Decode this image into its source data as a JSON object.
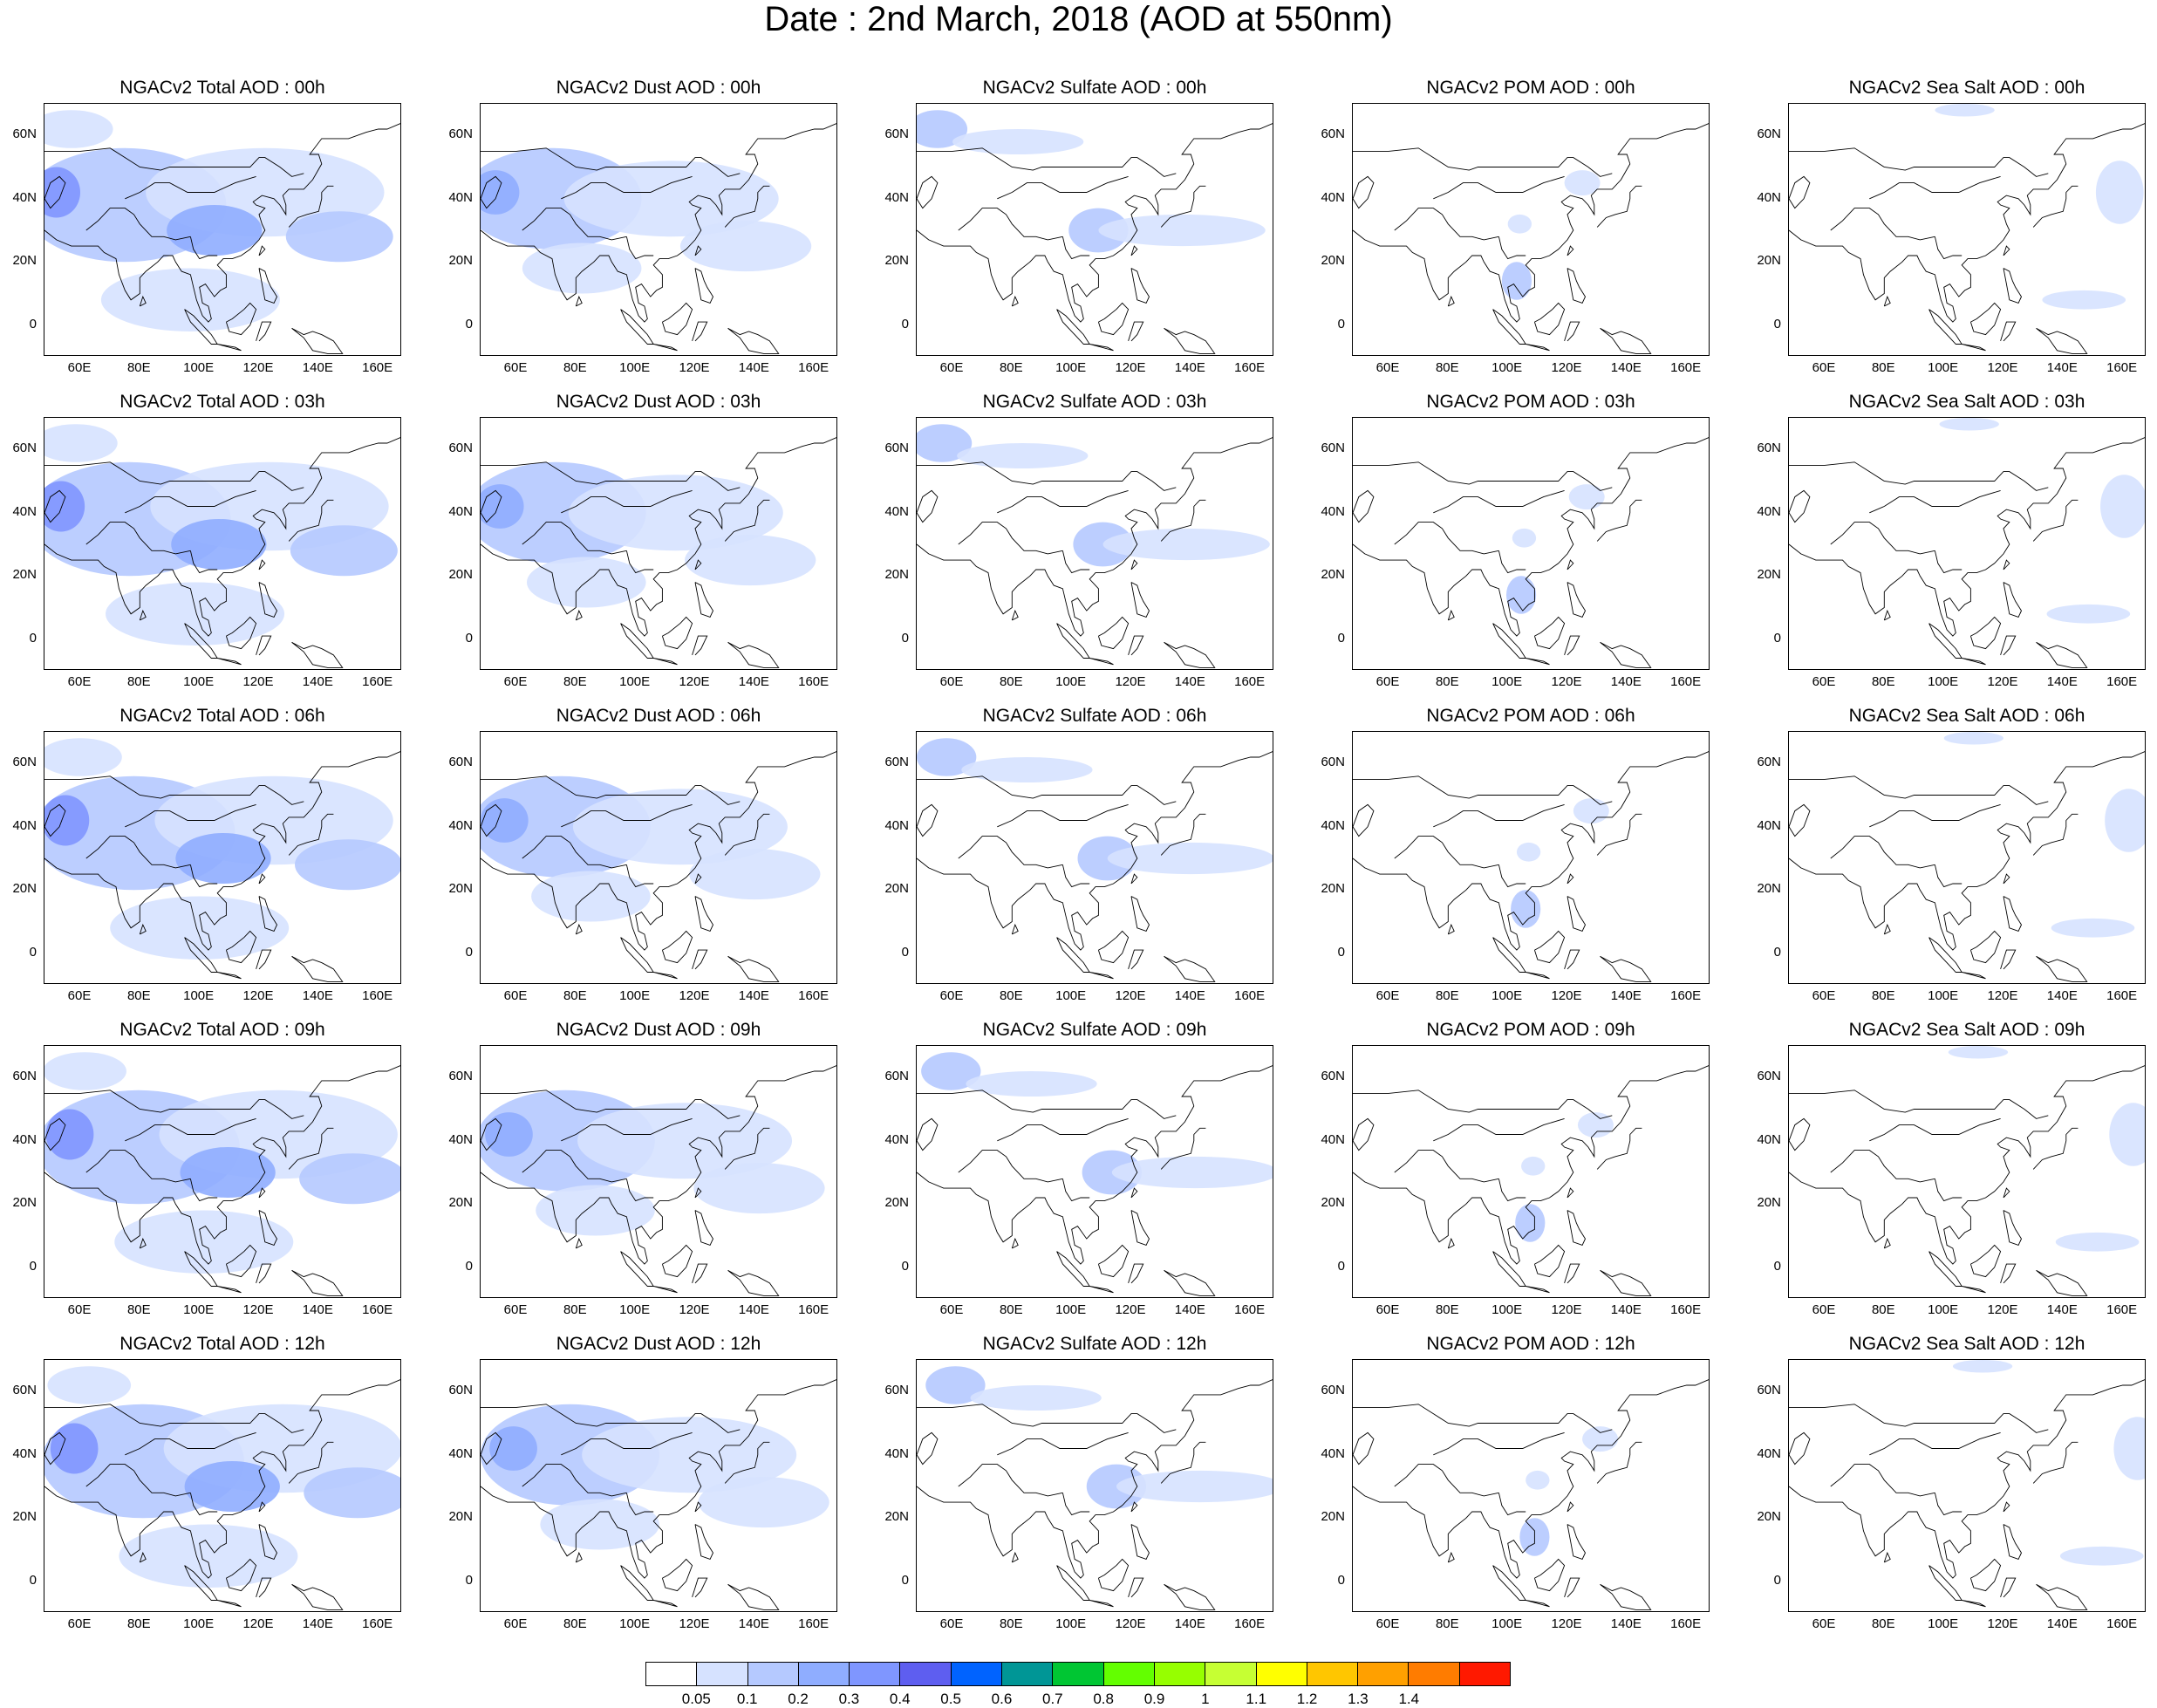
{
  "title": "Date : 2nd March, 2018 (AOD at 550nm)",
  "lat_labels": [
    "60N",
    "40N",
    "20N",
    "0"
  ],
  "lon_labels": [
    "60E",
    "80E",
    "100E",
    "120E",
    "140E",
    "160E"
  ],
  "map_extent": {
    "lon": [
      48,
      168
    ],
    "lat": [
      -10,
      70
    ]
  },
  "panel_titles": [
    [
      "NGACv2 Total AOD : 00h",
      "NGACv2 Dust AOD : 00h",
      "NGACv2 Sulfate AOD : 00h",
      "NGACv2 POM AOD : 00h",
      "NGACv2 Sea Salt AOD : 00h"
    ],
    [
      "NGACv2 Total AOD : 03h",
      "NGACv2 Dust AOD : 03h",
      "NGACv2 Sulfate AOD : 03h",
      "NGACv2 POM AOD : 03h",
      "NGACv2 Sea Salt AOD : 03h"
    ],
    [
      "NGACv2 Total AOD : 06h",
      "NGACv2 Dust AOD : 06h",
      "NGACv2 Sulfate AOD : 06h",
      "NGACv2 POM AOD : 06h",
      "NGACv2 Sea Salt AOD : 06h"
    ],
    [
      "NGACv2 Total AOD : 09h",
      "NGACv2 Dust AOD : 09h",
      "NGACv2 Sulfate AOD : 09h",
      "NGACv2 POM AOD : 09h",
      "NGACv2 Sea Salt  AOD : 09h"
    ],
    [
      "NGACv2 Total AOD  : 12h",
      "NGACv2 Dust AOD : 12h",
      "NGACv2 Sulfate AOD : 12h",
      "NGACv2 POM  AOD : 12h",
      "NGACv2 Sea Salt  AOD : 12h"
    ]
  ],
  "colorbar": {
    "levels": [
      "0.05",
      "0.1",
      "0.2",
      "0.3",
      "0.4",
      "0.5",
      "0.6",
      "0.7",
      "0.8",
      "0.9",
      "1",
      "1.1",
      "1.2",
      "1.3",
      "1.4"
    ],
    "colors": [
      "#ffffff",
      "#d6e2ff",
      "#b5c9ff",
      "#8fadff",
      "#7f96ff",
      "#5e5ef0",
      "#0063ff",
      "#009696",
      "#00c633",
      "#63ff00",
      "#96ff00",
      "#c6ff33",
      "#ffff00",
      "#ffc600",
      "#ffa000",
      "#ff7c00",
      "#ff1900"
    ]
  },
  "panel_blobs": {
    "total": [
      {
        "lon": 78,
        "lat": 38,
        "rx": 34,
        "ry": 18,
        "c": 2
      },
      {
        "lon": 125,
        "lat": 42,
        "rx": 40,
        "ry": 14,
        "c": 1
      },
      {
        "lon": 108,
        "lat": 30,
        "rx": 16,
        "ry": 8,
        "c": 3
      },
      {
        "lon": 55,
        "lat": 42,
        "rx": 8,
        "ry": 8,
        "c": 4
      },
      {
        "lon": 150,
        "lat": 28,
        "rx": 18,
        "ry": 8,
        "c": 2
      },
      {
        "lon": 100,
        "lat": 8,
        "rx": 30,
        "ry": 10,
        "c": 1
      },
      {
        "lon": 60,
        "lat": 62,
        "rx": 14,
        "ry": 6,
        "c": 1
      }
    ],
    "dust": [
      {
        "lon": 75,
        "lat": 40,
        "rx": 30,
        "ry": 16,
        "c": 2
      },
      {
        "lon": 115,
        "lat": 40,
        "rx": 36,
        "ry": 12,
        "c": 1
      },
      {
        "lon": 56,
        "lat": 42,
        "rx": 8,
        "ry": 7,
        "c": 3
      },
      {
        "lon": 140,
        "lat": 25,
        "rx": 22,
        "ry": 8,
        "c": 1
      },
      {
        "lon": 85,
        "lat": 18,
        "rx": 20,
        "ry": 8,
        "c": 1
      }
    ],
    "sulfate": [
      {
        "lon": 58,
        "lat": 62,
        "rx": 10,
        "ry": 6,
        "c": 2
      },
      {
        "lon": 112,
        "lat": 30,
        "rx": 10,
        "ry": 7,
        "c": 2
      },
      {
        "lon": 140,
        "lat": 30,
        "rx": 28,
        "ry": 5,
        "c": 1
      },
      {
        "lon": 85,
        "lat": 58,
        "rx": 22,
        "ry": 4,
        "c": 1
      }
    ],
    "pom": [
      {
        "lon": 106,
        "lat": 14,
        "rx": 5,
        "ry": 6,
        "c": 2
      },
      {
        "lon": 128,
        "lat": 45,
        "rx": 6,
        "ry": 4,
        "c": 1
      },
      {
        "lon": 107,
        "lat": 32,
        "rx": 4,
        "ry": 3,
        "c": 1
      }
    ],
    "seasalt": [
      {
        "lon": 162,
        "lat": 42,
        "rx": 8,
        "ry": 10,
        "c": 1
      },
      {
        "lon": 150,
        "lat": 8,
        "rx": 14,
        "ry": 3,
        "c": 1
      },
      {
        "lon": 110,
        "lat": 68,
        "rx": 10,
        "ry": 2,
        "c": 1
      }
    ]
  }
}
